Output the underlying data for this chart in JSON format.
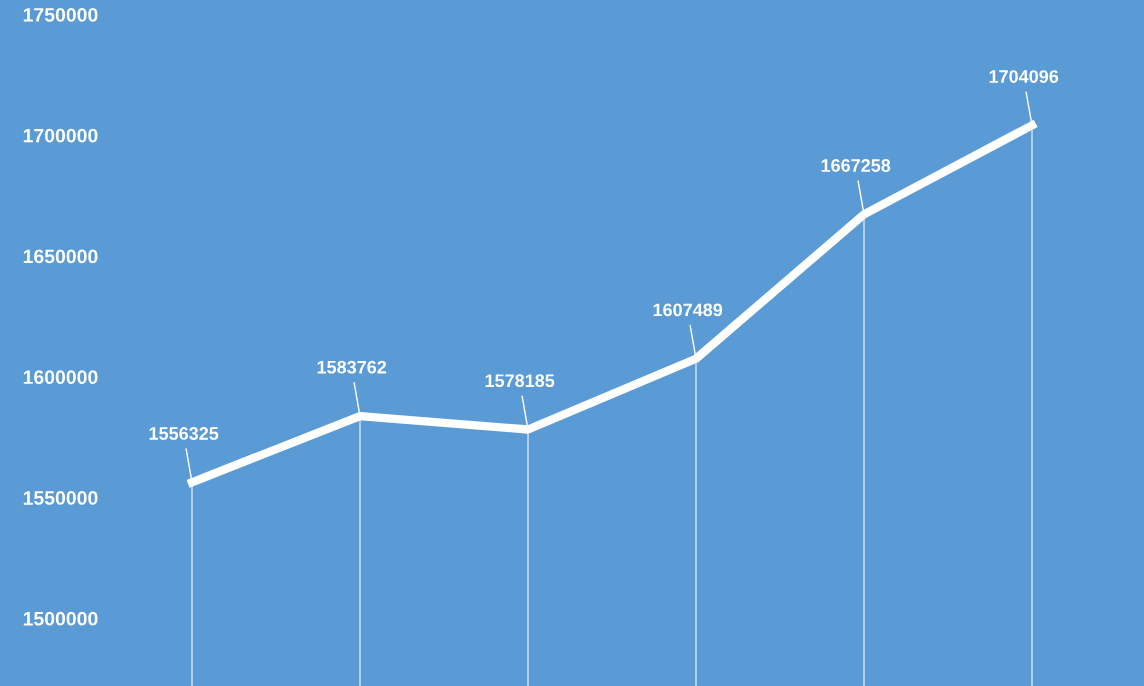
{
  "chart_data": {
    "type": "line",
    "categories": [
      null,
      null,
      null,
      null,
      null,
      null
    ],
    "series": [
      {
        "type": "bar",
        "color": "#ffffff",
        "values": [
          1556325,
          1583762,
          1578185,
          1607489,
          1667258,
          1704096
        ]
      },
      {
        "color": "#ffffff",
        "values": [
          1556325,
          1583762,
          1578185,
          1607489,
          1667258,
          1704096
        ],
        "value_labels": [
          "1556325",
          "1583762",
          "1578185",
          "1607489",
          "1667258",
          "1704096"
        ]
      }
    ],
    "ylim": [
      1472000,
      1756000
    ],
    "yticks": [
      1500000,
      1550000,
      1600000,
      1650000,
      1700000,
      1750000
    ],
    "grid": false,
    "legend": false,
    "marker": "none",
    "line_style": "solid"
  }
}
